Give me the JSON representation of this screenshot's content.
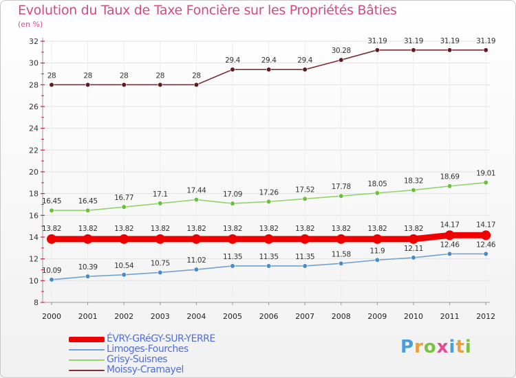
{
  "chart_data": {
    "type": "line",
    "title": "Evolution du Taux de Taxe Foncière sur les Propriétés Bâties",
    "subtitle": "(en %)",
    "xlabel": "",
    "ylabel": "",
    "x": [
      "2000",
      "2001",
      "2002",
      "2003",
      "2004",
      "2005",
      "2006",
      "2007",
      "2008",
      "2009",
      "2010",
      "2011",
      "2012"
    ],
    "ylim": [
      8,
      32
    ],
    "yticks": [
      8,
      10,
      12,
      14,
      16,
      18,
      20,
      22,
      24,
      26,
      28,
      30,
      32
    ],
    "legend_position": "bottom-left",
    "series": [
      {
        "name": "Moissy-Cramayel",
        "color": "#7a3035",
        "marker_color": "#5e1c20",
        "values": [
          28,
          28,
          28,
          28,
          28,
          29.4,
          29.4,
          29.4,
          30.28,
          31.19,
          31.19,
          31.19,
          31.19
        ],
        "labels": [
          "28",
          "28",
          "28",
          "28",
          "28",
          "29.4",
          "29.4",
          "29.4",
          "30.28",
          "31.19",
          "31.19",
          "31.19",
          "31.19"
        ]
      },
      {
        "name": "Grisy-Suisnes",
        "color": "#92d36a",
        "marker_color": "#6cbf3c",
        "values": [
          16.45,
          16.45,
          16.77,
          17.1,
          17.44,
          17.09,
          17.26,
          17.52,
          17.78,
          18.05,
          18.32,
          18.69,
          19.01
        ],
        "labels": [
          "16.45",
          "16.45",
          "16.77",
          "17.1",
          "17.44",
          "17.09",
          "17.26",
          "17.52",
          "17.78",
          "18.05",
          "18.32",
          "18.69",
          "19.01"
        ]
      },
      {
        "name": "ÉVRY-GRéGY-SUR-YERRE",
        "color": "#ee0000",
        "marker_color": "#ee0000",
        "values": [
          13.82,
          13.82,
          13.82,
          13.82,
          13.82,
          13.82,
          13.82,
          13.82,
          13.82,
          13.82,
          13.82,
          14.17,
          14.17
        ],
        "labels": [
          "13.82",
          "13.82",
          "13.82",
          "13.82",
          "13.82",
          "13.82",
          "13.82",
          "13.82",
          "13.82",
          "13.82",
          "13.82",
          "14.17",
          "14.17"
        ]
      },
      {
        "name": "Limoges-Fourches",
        "color": "#6fa2d0",
        "marker_color": "#4a8ac6",
        "values": [
          10.09,
          10.39,
          10.54,
          10.75,
          11.02,
          11.35,
          11.35,
          11.35,
          11.58,
          11.9,
          12.11,
          12.46,
          12.46
        ],
        "labels": [
          "10.09",
          "10.39",
          "10.54",
          "10.75",
          "11.02",
          "11.35",
          "11.35",
          "11.35",
          "11.58",
          "11.9",
          "12.11",
          "12.46",
          "12.46"
        ]
      }
    ]
  },
  "legend": [
    {
      "label": "ÉVRY-GRéGY-SUR-YERRE",
      "color": "#ee0000",
      "thick": true
    },
    {
      "label": "Limoges-Fourches",
      "color": "#6fa2d0",
      "thick": false
    },
    {
      "label": "Grisy-Suisnes",
      "color": "#92d36a",
      "thick": false
    },
    {
      "label": "Moissy-Cramayel",
      "color": "#7a3035",
      "thick": false
    }
  ],
  "logo": {
    "letters": [
      "P",
      "r",
      "o",
      "x",
      "i",
      "t",
      "i"
    ]
  }
}
